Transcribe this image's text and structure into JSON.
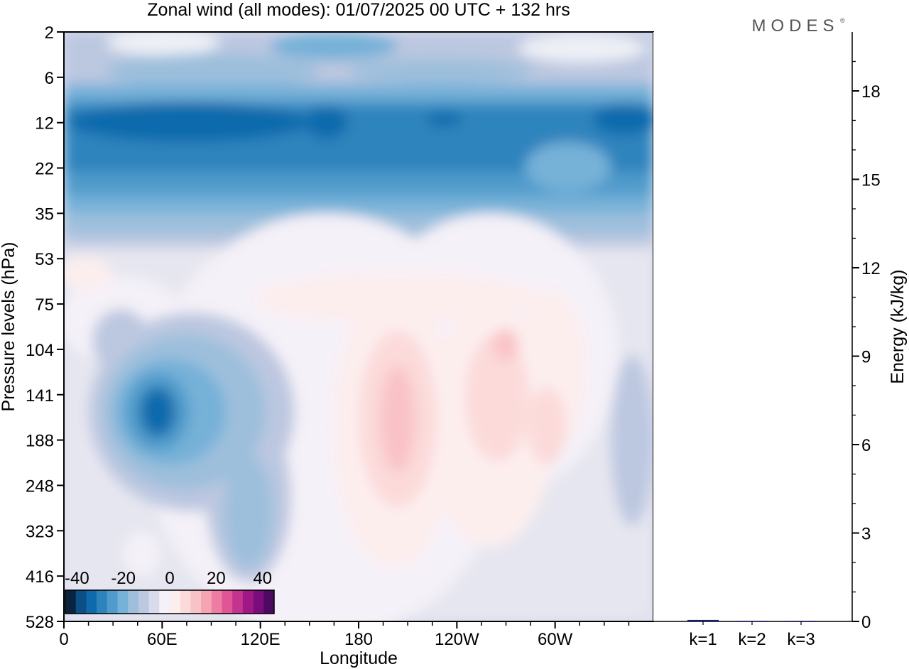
{
  "chart_data": [
    {
      "type": "heatmap",
      "title": "Zonal wind (all modes):  01/07/2025  00 UTC  + 132 hrs",
      "xlabel": "Longitude",
      "ylabel": "Pressure levels (hPa)",
      "x_ticks": [
        "0",
        "60E",
        "120E",
        "180",
        "120W",
        "60W"
      ],
      "x_tick_degrees": [
        0,
        60,
        120,
        180,
        240,
        300
      ],
      "xlim": [
        0,
        360
      ],
      "y_ticks": [
        "2",
        "6",
        "12",
        "22",
        "35",
        "53",
        "75",
        "104",
        "141",
        "188",
        "248",
        "323",
        "416",
        "528"
      ],
      "y_scale": "log",
      "colorbar": {
        "tick_labels": [
          "-40",
          "-20",
          "0",
          "20",
          "40"
        ],
        "min": -45,
        "max": 45,
        "step": 5,
        "colors": [
          "#08243f",
          "#0b4f86",
          "#0e6aac",
          "#2d84bd",
          "#4f9bcb",
          "#76b1d8",
          "#9dbfdc",
          "#bcc7e0",
          "#d7dbec",
          "#f5f1f8",
          "#fdeeee",
          "#fcdada",
          "#f9c2c6",
          "#f5a4b2",
          "#ef7ca3",
          "#e05596",
          "#c43390",
          "#a01885",
          "#7a0c7c",
          "#4c0a62"
        ]
      }
    },
    {
      "type": "bar",
      "categories": [
        "k=1",
        "k=2",
        "k=3"
      ],
      "values": [
        0.05,
        0.02,
        0.02
      ],
      "ylabel": "Energy (kJ/kg)",
      "y_ticks": [
        "0",
        "3",
        "6",
        "9",
        "12",
        "15",
        "18"
      ],
      "ylim": [
        0,
        20
      ],
      "bar_color": "#1a1a6e"
    }
  ],
  "logo": "MODES"
}
